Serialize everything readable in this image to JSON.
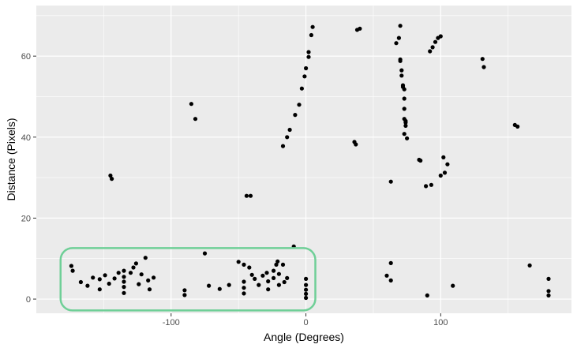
{
  "chart_data": {
    "type": "scatter",
    "title": "",
    "xlabel": "Angle (Degrees)",
    "ylabel": "Distance (Pixels)",
    "xlim": [
      -200,
      197
    ],
    "ylim": [
      -3.5,
      72.5
    ],
    "x_ticks": [
      -100,
      0,
      100
    ],
    "x_tick_labels": [
      "-100",
      "0",
      "100"
    ],
    "y_ticks": [
      0,
      20,
      40,
      60
    ],
    "y_tick_labels": [
      "0",
      "20",
      "40",
      "60"
    ],
    "grid": true,
    "legend": "none",
    "colors": {
      "panel_bg": "#ebebeb",
      "grid": "#ffffff",
      "point": "#000000",
      "highlight": "#6fcf97"
    },
    "highlight_box": {
      "x_range": [
        -182,
        7
      ],
      "y_range": [
        -2.8,
        12.6
      ],
      "shape": "rounded-rectangle"
    },
    "points": [
      [
        -145,
        30.5
      ],
      [
        -144,
        29.7
      ],
      [
        -85,
        48.2
      ],
      [
        -82,
        44.5
      ],
      [
        -44,
        25.5
      ],
      [
        -41,
        25.5
      ],
      [
        -17,
        37.8
      ],
      [
        -14,
        40
      ],
      [
        -12,
        41.8
      ],
      [
        -8,
        45.5
      ],
      [
        -5,
        48
      ],
      [
        -3,
        52
      ],
      [
        -1,
        55
      ],
      [
        0,
        57
      ],
      [
        2,
        59.8
      ],
      [
        2,
        61
      ],
      [
        4,
        65.2
      ],
      [
        5,
        67.2
      ],
      [
        36,
        38.8
      ],
      [
        37,
        38.2
      ],
      [
        38,
        66.5
      ],
      [
        40,
        66.8
      ],
      [
        63,
        29
      ],
      [
        67,
        63.2
      ],
      [
        69,
        64.5
      ],
      [
        70,
        67.5
      ],
      [
        70,
        58.8
      ],
      [
        70,
        59.2
      ],
      [
        71,
        55.2
      ],
      [
        71,
        56.5
      ],
      [
        72,
        52.4
      ],
      [
        72,
        52.8
      ],
      [
        73,
        51.8
      ],
      [
        73,
        49.5
      ],
      [
        73,
        47
      ],
      [
        73,
        44.5
      ],
      [
        74,
        44
      ],
      [
        74,
        43.6
      ],
      [
        74,
        42.8
      ],
      [
        73,
        40.8
      ],
      [
        75,
        39.7
      ],
      [
        84,
        34.4
      ],
      [
        85,
        34.2
      ],
      [
        89,
        27.9
      ],
      [
        93,
        28.2
      ],
      [
        92,
        61.2
      ],
      [
        94,
        62.2
      ],
      [
        96,
        63.5
      ],
      [
        98,
        64.5
      ],
      [
        100,
        64.9
      ],
      [
        100,
        30.5
      ],
      [
        102,
        35
      ],
      [
        103,
        31.2
      ],
      [
        105,
        33.3
      ],
      [
        131,
        59.3
      ],
      [
        132,
        57.3
      ],
      [
        155,
        43
      ],
      [
        157,
        42.6
      ],
      [
        -174,
        8.2
      ],
      [
        -173,
        7
      ],
      [
        -167,
        4.2
      ],
      [
        -162,
        3.3
      ],
      [
        -158,
        5.3
      ],
      [
        -153,
        2.4
      ],
      [
        -153,
        4.9
      ],
      [
        -149,
        5.9
      ],
      [
        -146,
        3.8
      ],
      [
        -142,
        5.1
      ],
      [
        -139,
        6.5
      ],
      [
        -135,
        1.5
      ],
      [
        -135,
        3
      ],
      [
        -135,
        4.3
      ],
      [
        -135,
        5.5
      ],
      [
        -135,
        7
      ],
      [
        -130,
        6.5
      ],
      [
        -128,
        7.8
      ],
      [
        -126,
        8.8
      ],
      [
        -124,
        3.7
      ],
      [
        -122,
        6.1
      ],
      [
        -119,
        10.2
      ],
      [
        -117,
        4.6
      ],
      [
        -116,
        2.4
      ],
      [
        -113,
        5.3
      ],
      [
        -90,
        1
      ],
      [
        -90,
        2.2
      ],
      [
        -75,
        11.3
      ],
      [
        -72,
        3.3
      ],
      [
        -64,
        2.5
      ],
      [
        -57,
        3.5
      ],
      [
        -50,
        9.2
      ],
      [
        -46,
        8.5
      ],
      [
        -46,
        4.3
      ],
      [
        -46,
        2.8
      ],
      [
        -46,
        1.4
      ],
      [
        -42,
        7.8
      ],
      [
        -40,
        6
      ],
      [
        -38,
        5
      ],
      [
        -35,
        3.5
      ],
      [
        -32,
        5.8
      ],
      [
        -29,
        6.5
      ],
      [
        -28,
        4.4
      ],
      [
        -28,
        2.4
      ],
      [
        -24,
        7
      ],
      [
        -24,
        5.2
      ],
      [
        -22,
        8.5
      ],
      [
        -21,
        9.3
      ],
      [
        -20,
        3.5
      ],
      [
        -20,
        6.2
      ],
      [
        -17,
        8.5
      ],
      [
        -16,
        4.2
      ],
      [
        -14,
        5.2
      ],
      [
        -9,
        13
      ],
      [
        0,
        5
      ],
      [
        0,
        3.5
      ],
      [
        0,
        2.3
      ],
      [
        0,
        1.3
      ],
      [
        0,
        0.3
      ],
      [
        60,
        5.8
      ],
      [
        63,
        4.6
      ],
      [
        63,
        8.9
      ],
      [
        90,
        0.9
      ],
      [
        109,
        3.3
      ],
      [
        166,
        8.3
      ],
      [
        180,
        5
      ],
      [
        180,
        2
      ],
      [
        180,
        0.9
      ]
    ]
  }
}
